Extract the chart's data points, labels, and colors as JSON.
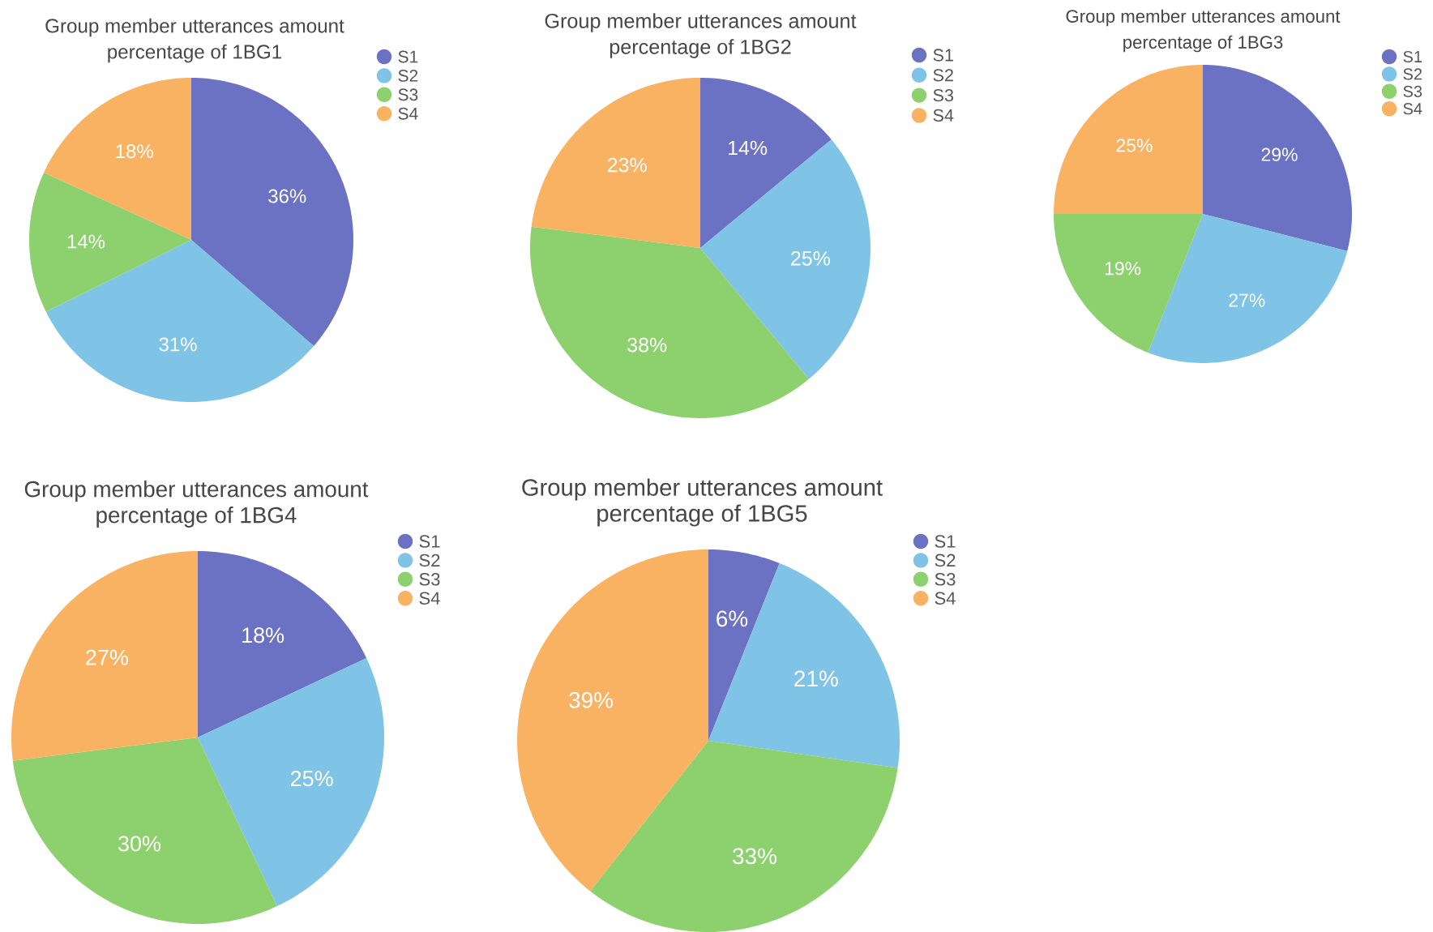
{
  "chart_data": [
    {
      "type": "pie",
      "title": "Group member utterances amount percentage of 1BG1",
      "categories": [
        "S1",
        "S2",
        "S3",
        "S4"
      ],
      "values": [
        36,
        31,
        14,
        18
      ],
      "value_labels": [
        "36%",
        "31%",
        "14%",
        "18%"
      ],
      "colors": [
        "#6b72c4",
        "#7fc4e6",
        "#8dd06e",
        "#f8b262"
      ],
      "legend": "top right"
    },
    {
      "type": "pie",
      "title": "Group member utterances amount percentage of 1BG2",
      "categories": [
        "S1",
        "S2",
        "S3",
        "S4"
      ],
      "values": [
        14,
        25,
        38,
        23
      ],
      "value_labels": [
        "14%",
        "25%",
        "38%",
        "23%"
      ],
      "colors": [
        "#6b72c4",
        "#7fc4e6",
        "#8dd06e",
        "#f8b262"
      ],
      "legend": "top right"
    },
    {
      "type": "pie",
      "title": "Group member utterances amount percentage of 1BG3",
      "categories": [
        "S1",
        "S2",
        "S3",
        "S4"
      ],
      "values": [
        29,
        27,
        19,
        25
      ],
      "value_labels": [
        "29%",
        "27%",
        "19%",
        "25%"
      ],
      "colors": [
        "#6b72c4",
        "#7fc4e6",
        "#8dd06e",
        "#f8b262"
      ],
      "legend": "top right"
    },
    {
      "type": "pie",
      "title": "Group member utterances amount percentage of 1BG4",
      "categories": [
        "S1",
        "S2",
        "S3",
        "S4"
      ],
      "values": [
        18,
        25,
        30,
        27
      ],
      "value_labels": [
        "18%",
        "25%",
        "30%",
        "27%"
      ],
      "colors": [
        "#6b72c4",
        "#7fc4e6",
        "#8dd06e",
        "#f8b262"
      ],
      "legend": "top right"
    },
    {
      "type": "pie",
      "title": "Group member utterances amount percentage of 1BG5",
      "categories": [
        "S1",
        "S2",
        "S3",
        "S4"
      ],
      "values": [
        6,
        21,
        33,
        39
      ],
      "value_labels": [
        "6%",
        "21%",
        "33%",
        "39%"
      ],
      "colors": [
        "#6b72c4",
        "#7fc4e6",
        "#8dd06e",
        "#f8b262"
      ],
      "legend": "top right"
    }
  ]
}
